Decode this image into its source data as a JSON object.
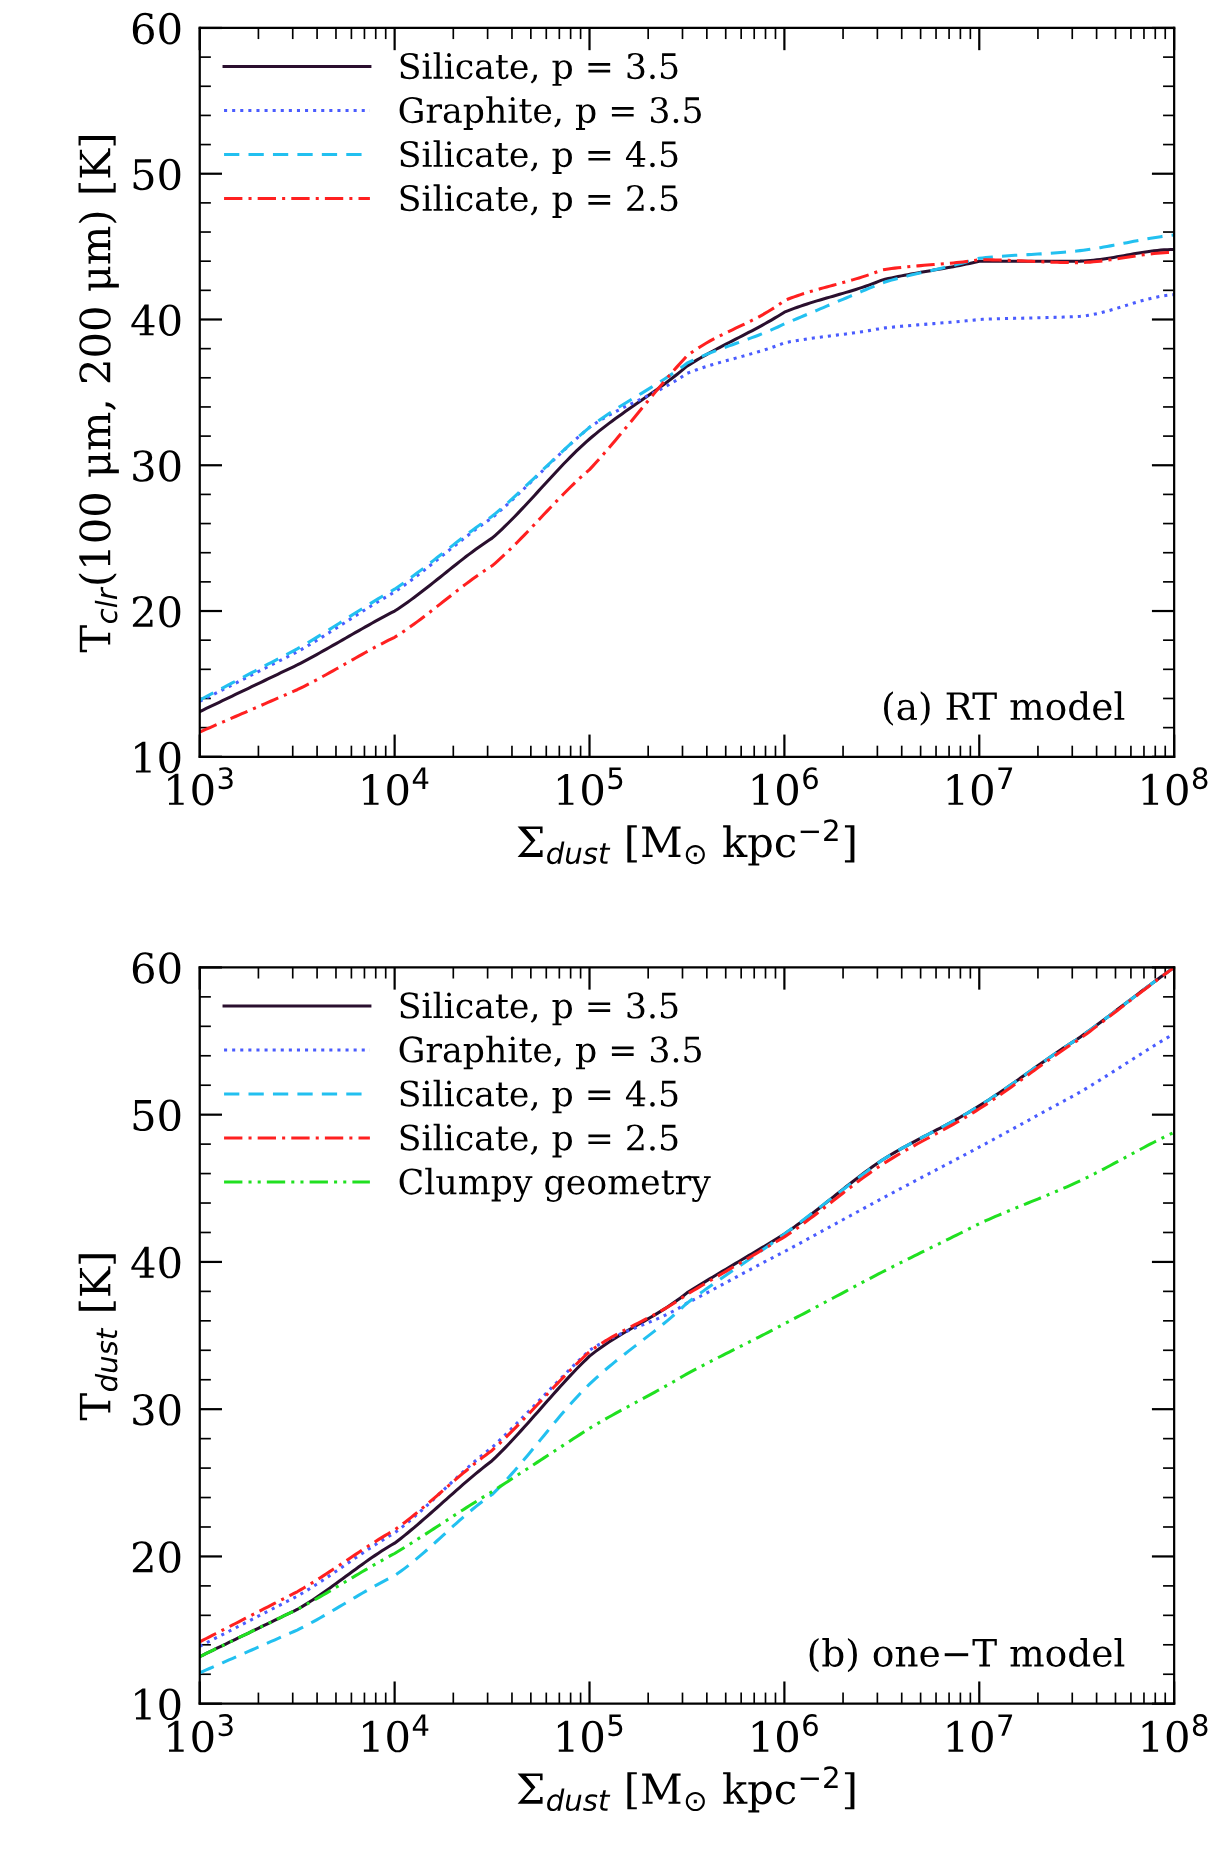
{
  "chart_data": [
    {
      "type": "line",
      "xlabel": "Σ$_{dust}$ [M$_{⊙}$ kpc$^{−2}$]",
      "ylabel": "T$_{clr}$(100 μm, 200 μm) [K]",
      "log": "x",
      "xlim": [
        1000,
        100000000
      ],
      "ylim": [
        10,
        60
      ],
      "xticks": [
        {
          "value": 1000,
          "label": "10$^{3}$"
        },
        {
          "value": 10000,
          "label": "10$^{4}$"
        },
        {
          "value": 100000,
          "label": "10$^{5}$"
        },
        {
          "value": 1000000,
          "label": "10$^{6}$"
        },
        {
          "value": 10000000,
          "label": "10$^{7}$"
        },
        {
          "value": 100000000,
          "label": "10$^{8}$"
        }
      ],
      "yticks": [
        10,
        20,
        30,
        40,
        50,
        60
      ],
      "legend": "top left",
      "grid": false,
      "annotations": [
        "(a) RT model"
      ],
      "x": [
        1000,
        3162,
        10000,
        31620,
        100000,
        316200,
        1000000,
        3162000,
        10000000,
        31620000,
        100000000
      ],
      "series": [
        {
          "name": "Silicate, p = 3.5",
          "color": "#2a0f2e",
          "line_style": "solid",
          "values": [
            13.1,
            16.3,
            20.0,
            25.0,
            31.8,
            36.8,
            40.5,
            42.7,
            44.0,
            44.0,
            44.8
          ]
        },
        {
          "name": "Graphite, p = 3.5",
          "color": "#4a5cff",
          "line_style": "dotted",
          "values": [
            13.8,
            17.2,
            21.3,
            26.4,
            32.6,
            36.3,
            38.4,
            39.4,
            40.0,
            40.2,
            41.7
          ]
        },
        {
          "name": "Silicate, p = 4.5",
          "color": "#22c0f0",
          "line_style": "dashed",
          "values": [
            13.9,
            17.4,
            21.5,
            26.5,
            32.6,
            37.0,
            39.7,
            42.5,
            44.2,
            44.7,
            45.8
          ]
        },
        {
          "name": "Silicate, p = 2.5",
          "color": "#ff2020",
          "line_style": "dashdot",
          "values": [
            11.7,
            14.6,
            18.2,
            23.1,
            29.7,
            37.5,
            41.3,
            43.4,
            44.1,
            43.9,
            44.6
          ]
        }
      ]
    },
    {
      "type": "line",
      "xlabel": "Σ$_{dust}$ [M$_{⊙}$ kpc$^{−2}$]",
      "ylabel": "T$_{dust}$ [K]",
      "log": "x",
      "xlim": [
        1000,
        100000000
      ],
      "ylim": [
        10,
        60
      ],
      "xticks": [
        {
          "value": 1000,
          "label": "10$^{3}$"
        },
        {
          "value": 10000,
          "label": "10$^{4}$"
        },
        {
          "value": 100000,
          "label": "10$^{5}$"
        },
        {
          "value": 1000000,
          "label": "10$^{6}$"
        },
        {
          "value": 10000000,
          "label": "10$^{7}$"
        },
        {
          "value": 100000000,
          "label": "10$^{8}$"
        }
      ],
      "yticks": [
        10,
        20,
        30,
        40,
        50,
        60
      ],
      "legend": "top left",
      "grid": false,
      "annotations": [
        "(b) one−T model"
      ],
      "x": [
        1000,
        3162,
        10000,
        31620,
        100000,
        316200,
        1000000,
        3162000,
        10000000,
        31620000,
        100000000
      ],
      "series": [
        {
          "name": "Silicate, p = 3.5",
          "color": "#2a0f2e",
          "line_style": "solid",
          "values": [
            13.2,
            16.4,
            20.9,
            26.5,
            33.6,
            37.9,
            41.9,
            46.9,
            50.6,
            55.1,
            60.0
          ]
        },
        {
          "name": "Graphite, p = 3.5",
          "color": "#4a5cff",
          "line_style": "dotted",
          "values": [
            13.9,
            17.3,
            21.6,
            27.4,
            34.0,
            37.2,
            40.7,
            44.3,
            47.8,
            51.4,
            55.5
          ]
        },
        {
          "name": "Silicate, p = 4.5",
          "color": "#22c0f0",
          "line_style": "dashed",
          "values": [
            12.1,
            15.0,
            18.7,
            24.2,
            31.7,
            37.2,
            41.9,
            46.9,
            50.6,
            55.1,
            60.0
          ]
        },
        {
          "name": "Silicate, p = 2.5",
          "color": "#ff2020",
          "line_style": "dashdot",
          "values": [
            14.2,
            17.6,
            21.8,
            27.2,
            33.9,
            37.8,
            41.7,
            46.6,
            50.4,
            55.0,
            60.0
          ]
        },
        {
          "name": "Clumpy geometry",
          "color": "#20e020",
          "line_style": "dashdotdot",
          "values": [
            13.2,
            16.4,
            20.2,
            24.4,
            28.7,
            32.4,
            35.8,
            39.3,
            42.6,
            45.4,
            48.8
          ]
        }
      ]
    }
  ]
}
